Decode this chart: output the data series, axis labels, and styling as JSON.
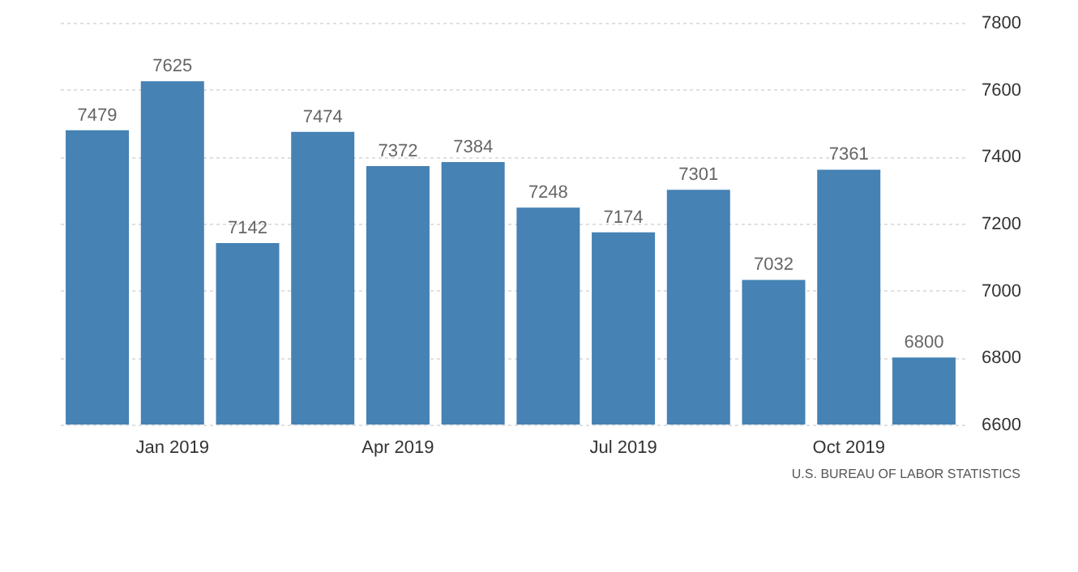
{
  "chart_data": {
    "type": "bar",
    "categories": [
      null,
      "Jan 2019",
      null,
      null,
      "Apr 2019",
      null,
      null,
      "Jul 2019",
      null,
      null,
      "Oct 2019",
      null
    ],
    "values": [
      7479,
      7625,
      7142,
      7474,
      7372,
      7384,
      7248,
      7174,
      7301,
      7032,
      7361,
      6800
    ],
    "color": "#4682b4",
    "ylim": [
      6600,
      7800
    ],
    "yticks": [
      6600,
      6800,
      7000,
      7200,
      7400,
      7600,
      7800
    ],
    "grid": "y",
    "data_labels": true,
    "annotations": [
      "U.S. BUREAU OF LABOR STATISTICS"
    ]
  }
}
